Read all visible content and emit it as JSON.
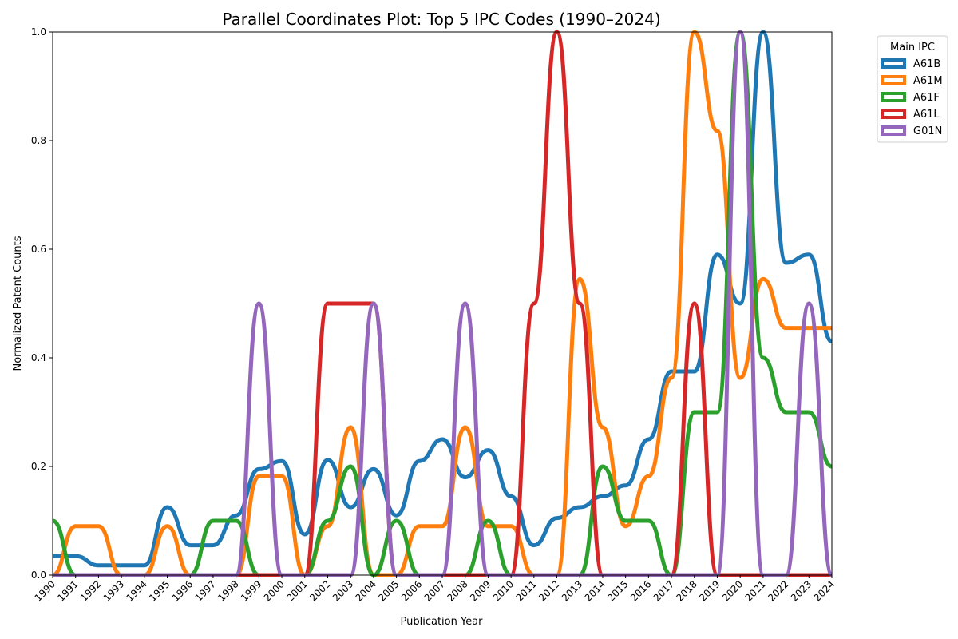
{
  "chart_data": {
    "type": "line",
    "title": "Parallel Coordinates Plot: Top 5 IPC Codes (1990–2024)",
    "xlabel": "Publication Year",
    "ylabel": "Normalized Patent Counts",
    "ylim": [
      0,
      1
    ],
    "yticks": [
      "0.0",
      "0.2",
      "0.4",
      "0.6",
      "0.8",
      "1.0"
    ],
    "grid": false,
    "legend": {
      "title": "Main IPC",
      "placement": "outside-top-right"
    },
    "categories": [
      "1990",
      "1991",
      "1992",
      "1993",
      "1994",
      "1995",
      "1996",
      "1997",
      "1998",
      "1999",
      "2000",
      "2001",
      "2002",
      "2003",
      "2004",
      "2005",
      "2006",
      "2007",
      "2008",
      "2009",
      "2010",
      "2011",
      "2012",
      "2013",
      "2014",
      "2015",
      "2016",
      "2017",
      "2018",
      "2019",
      "2020",
      "2021",
      "2022",
      "2023",
      "2024"
    ],
    "series": [
      {
        "name": "A61B",
        "color": "#1f77b4",
        "values": [
          0.035,
          0.035,
          0.018,
          0.018,
          0.018,
          0.125,
          0.055,
          0.055,
          0.11,
          0.195,
          0.21,
          0.075,
          0.212,
          0.125,
          0.195,
          0.11,
          0.21,
          0.25,
          0.18,
          0.23,
          0.145,
          0.055,
          0.105,
          0.125,
          0.145,
          0.165,
          0.25,
          0.375,
          0.375,
          0.59,
          0.5,
          1.0,
          0.575,
          0.59,
          0.43
        ]
      },
      {
        "name": "A61M",
        "color": "#ff7f0e",
        "values": [
          0,
          0.09,
          0.09,
          0,
          0,
          0.09,
          0,
          0,
          0,
          0.182,
          0.182,
          0,
          0.09,
          0.272,
          0,
          0,
          0.09,
          0.09,
          0.272,
          0.09,
          0.09,
          0,
          0,
          0.545,
          0.272,
          0.09,
          0.182,
          0.363,
          1.0,
          0.818,
          0.363,
          0.545,
          0.455,
          0.455,
          0.455
        ]
      },
      {
        "name": "A61F",
        "color": "#2ca02c",
        "values": [
          0.1,
          0,
          0,
          0,
          0,
          0,
          0,
          0.1,
          0.1,
          0,
          0,
          0,
          0.1,
          0.2,
          0,
          0.1,
          0,
          0,
          0,
          0.1,
          0,
          0,
          0,
          0,
          0.2,
          0.1,
          0.1,
          0,
          0.3,
          0.3,
          1.0,
          0.4,
          0.3,
          0.3,
          0.2
        ]
      },
      {
        "name": "A61L",
        "color": "#d62728",
        "values": [
          0,
          0,
          0,
          0,
          0,
          0,
          0,
          0,
          0,
          0,
          0,
          0,
          0.5,
          0.5,
          0.5,
          0,
          0,
          0,
          0,
          0,
          0,
          0.5,
          1.0,
          0.5,
          0,
          0,
          0,
          0,
          0.5,
          0,
          0,
          0,
          0,
          0,
          0
        ]
      },
      {
        "name": "G01N",
        "color": "#9467bd",
        "values": [
          0,
          0,
          0,
          0,
          0,
          0,
          0,
          0,
          0,
          0.5,
          0,
          0,
          0,
          0,
          0.5,
          0,
          0,
          0,
          0.5,
          0,
          0,
          0,
          0,
          0,
          0,
          0,
          0,
          0,
          0,
          0,
          1.0,
          0,
          0,
          0.5,
          0
        ]
      }
    ]
  }
}
